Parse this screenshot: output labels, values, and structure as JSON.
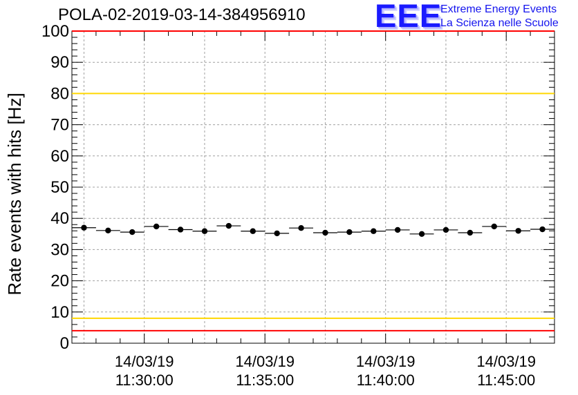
{
  "title": "POLA-02-2019-03-14-384956910",
  "logo": {
    "text": "EEE",
    "line1": "Extreme Energy Events",
    "line2": "La Scienza nelle Scuole",
    "color": "#1a1aff"
  },
  "chart_data": {
    "type": "scatter",
    "title": "POLA-02-2019-03-14-384956910",
    "xlabel": "",
    "ylabel": "Rate events with hits [Hz]",
    "ylim": [
      0,
      100
    ],
    "y_ticks": [
      0,
      10,
      20,
      30,
      40,
      50,
      60,
      70,
      80,
      90,
      100
    ],
    "xlim": [
      "11:27:00",
      "11:47:00"
    ],
    "x_tick_labels": [
      {
        "date": "14/03/19",
        "time": "11:30:00"
      },
      {
        "date": "14/03/19",
        "time": "11:35:00"
      },
      {
        "date": "14/03/19",
        "time": "11:40:00"
      },
      {
        "date": "14/03/19",
        "time": "11:45:00"
      }
    ],
    "grid": true,
    "x": [
      "11:27:30",
      "11:28:30",
      "11:29:30",
      "11:30:30",
      "11:31:30",
      "11:32:30",
      "11:33:30",
      "11:34:30",
      "11:35:30",
      "11:36:30",
      "11:37:30",
      "11:38:30",
      "11:39:30",
      "11:40:30",
      "11:41:30",
      "11:42:30",
      "11:43:30",
      "11:44:30",
      "11:45:30",
      "11:46:30"
    ],
    "bin_width_seconds": 60,
    "y": [
      37.0,
      36.1,
      35.6,
      37.4,
      36.4,
      35.9,
      37.6,
      35.9,
      35.2,
      36.9,
      35.4,
      35.6,
      35.9,
      36.3,
      35.0,
      36.3,
      35.4,
      37.4,
      36.0,
      36.5
    ],
    "reference_lines": [
      {
        "y": 100,
        "color": "#ff0000"
      },
      {
        "y": 80,
        "color": "#ffd700"
      },
      {
        "y": 8,
        "color": "#ffd700"
      },
      {
        "y": 4,
        "color": "#ff0000"
      }
    ]
  }
}
